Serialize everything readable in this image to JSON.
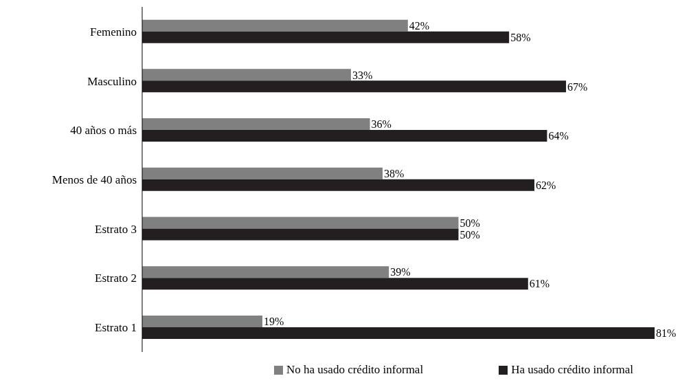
{
  "chart_data": {
    "type": "bar",
    "orientation": "horizontal",
    "categories": [
      "Femenino",
      "Masculino",
      "40 años o más",
      "Menos de 40 años",
      "Estrato 3",
      "Estrato 2",
      "Estrato 1"
    ],
    "series": [
      {
        "name": "No ha usado crédito informal",
        "color": "#808080",
        "values": [
          42,
          33,
          36,
          38,
          50,
          39,
          19
        ],
        "value_labels": [
          "42%",
          "33%",
          "36%",
          "38%",
          "50%",
          "39%",
          "19%"
        ]
      },
      {
        "name": "Ha usado crédito informal",
        "color": "#231f20",
        "values": [
          58,
          67,
          64,
          62,
          50,
          61,
          81
        ],
        "value_labels": [
          "58%",
          "67%",
          "64%",
          "62%",
          "50%",
          "61%",
          "81%"
        ]
      }
    ],
    "legend": "bottom",
    "grid": false
  }
}
